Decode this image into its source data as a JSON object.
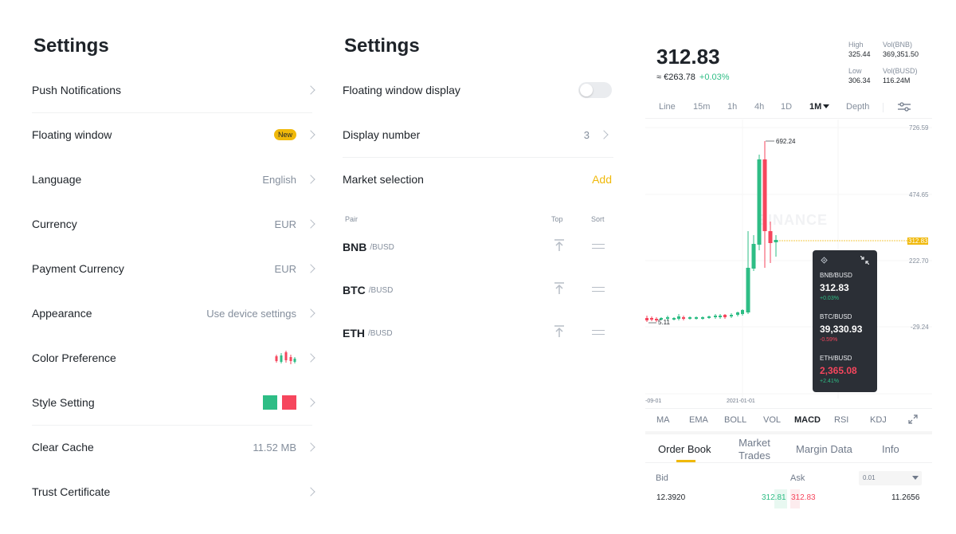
{
  "left_panel": {
    "title": "Settings",
    "rows": [
      {
        "label": "Push Notifications",
        "value": ""
      },
      {
        "label": "Floating window",
        "value": "",
        "badge": "New"
      },
      {
        "label": "Language",
        "value": "English"
      },
      {
        "label": "Currency",
        "value": "EUR"
      },
      {
        "label": "Payment Currency",
        "value": "EUR"
      },
      {
        "label": "Appearance",
        "value": "Use device settings"
      },
      {
        "label": "Color Preference",
        "value": ""
      },
      {
        "label": "Style Setting",
        "value": ""
      },
      {
        "label": "Clear Cache",
        "value": "11.52 MB"
      },
      {
        "label": "Trust Certificate",
        "value": ""
      }
    ],
    "style_colors": {
      "up": "#2ebd85",
      "down": "#f6465d"
    }
  },
  "middle_panel": {
    "title": "Settings",
    "floating_display_label": "Floating window display",
    "floating_display_on": false,
    "display_number_label": "Display number",
    "display_number_value": "3",
    "market_selection_label": "Market selection",
    "add_label": "Add",
    "col_pair": "Pair",
    "col_top": "Top",
    "col_sort": "Sort",
    "pairs": [
      {
        "symbol": "BNB",
        "quote": "/BUSD"
      },
      {
        "symbol": "BTC",
        "quote": "/BUSD"
      },
      {
        "symbol": "ETH",
        "quote": "/BUSD"
      }
    ]
  },
  "right_panel": {
    "price": "312.83",
    "fiat": "≈ €263.78",
    "change": "+0.03%",
    "stats": {
      "high_label": "High",
      "high": "325.44",
      "vol_bnb_label": "Vol(BNB)",
      "vol_bnb": "369,351.50",
      "low_label": "Low",
      "low": "306.34",
      "vol_busd_label": "Vol(BUSD)",
      "vol_busd": "116.24M"
    },
    "timeframes": [
      "Line",
      "15m",
      "1h",
      "4h",
      "1D",
      "1M",
      "Depth"
    ],
    "active_timeframe": "1M",
    "chart": {
      "y_labels": [
        "726.59",
        "474.65",
        "312.83",
        "222.70",
        "-29.24"
      ],
      "x_labels": [
        "-09-01",
        "2021-01-01"
      ],
      "max_label": "692.24",
      "min_label": "5.11",
      "watermark": "BINANCE"
    },
    "floating": {
      "items": [
        {
          "pair": "BNB/BUSD",
          "price": "312.83",
          "change": "+0.03%",
          "price_color": "#ffffff"
        },
        {
          "pair": "BTC/BUSD",
          "price": "39,330.93",
          "change": "-0.59%",
          "price_color": "#ffffff"
        },
        {
          "pair": "ETH/BUSD",
          "price": "2,365.08",
          "change": "+2.41%",
          "price_color": "#f6465d"
        }
      ]
    },
    "indicators": [
      "MA",
      "EMA",
      "BOLL",
      "VOL",
      "MACD",
      "RSI",
      "KDJ"
    ],
    "active_indicator": "MACD",
    "tabs": [
      "Order Book",
      "Market Trades",
      "Margin Data",
      "Info"
    ],
    "orderbook": {
      "bid_label": "Bid",
      "ask_label": "Ask",
      "precision": "0.01",
      "bid_qty": "12.3920",
      "bid_price": "312.81",
      "ask_price": "312.83",
      "ask_qty": "11.2656"
    }
  }
}
